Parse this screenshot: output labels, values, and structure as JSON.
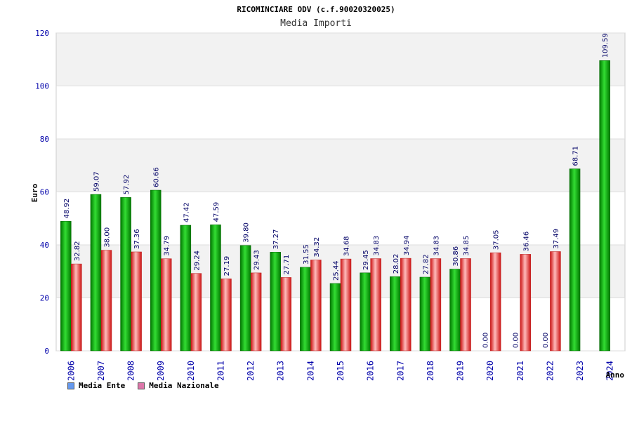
{
  "chart_data": {
    "type": "bar",
    "title": "RICOMINCIARE ODV (c.f.90020320025)",
    "subtitle": "Media Importi",
    "ylabel": "Euro",
    "xlabel": "Anno",
    "ylim": [
      0,
      120
    ],
    "yticks": [
      0,
      20,
      40,
      60,
      80,
      100,
      120
    ],
    "categories": [
      "2006",
      "2007",
      "2008",
      "2009",
      "2010",
      "2011",
      "2012",
      "2013",
      "2014",
      "2015",
      "2016",
      "2017",
      "2018",
      "2019",
      "2020",
      "2021",
      "2022",
      "2023",
      "2024"
    ],
    "series": [
      {
        "name": "Media Ente",
        "legend_color": "#6699ee",
        "bar_color": "#11aa11",
        "values": [
          48.92,
          59.07,
          57.92,
          60.66,
          47.42,
          47.59,
          39.8,
          37.27,
          31.55,
          25.44,
          29.45,
          28.02,
          27.82,
          30.86,
          0,
          0,
          0,
          68.71,
          109.59
        ],
        "labels": [
          "48.92",
          "59.07",
          "57.92",
          "60.66",
          "47.42",
          "47.59",
          "39.80",
          "37.27",
          "31.55",
          "25.44",
          "29.45",
          "28.02",
          "27.82",
          "30.86",
          "0.00",
          "0.00",
          "0.00",
          "68.71",
          "109.59"
        ]
      },
      {
        "name": "Media Nazionale",
        "legend_color": "#dd77aa",
        "bar_color": "#dd3333",
        "values": [
          32.82,
          38.0,
          37.36,
          34.79,
          29.24,
          27.19,
          29.43,
          27.71,
          34.32,
          34.68,
          34.83,
          34.94,
          34.83,
          34.85,
          37.05,
          36.46,
          37.49,
          null,
          null
        ],
        "labels": [
          "32.82",
          "38.00",
          "37.36",
          "34.79",
          "29.24",
          "27.19",
          "29.43",
          "27.71",
          "34.32",
          "34.68",
          "34.83",
          "34.94",
          "34.83",
          "34.85",
          "37.05",
          "36.46",
          "37.49",
          "",
          ""
        ]
      }
    ]
  }
}
